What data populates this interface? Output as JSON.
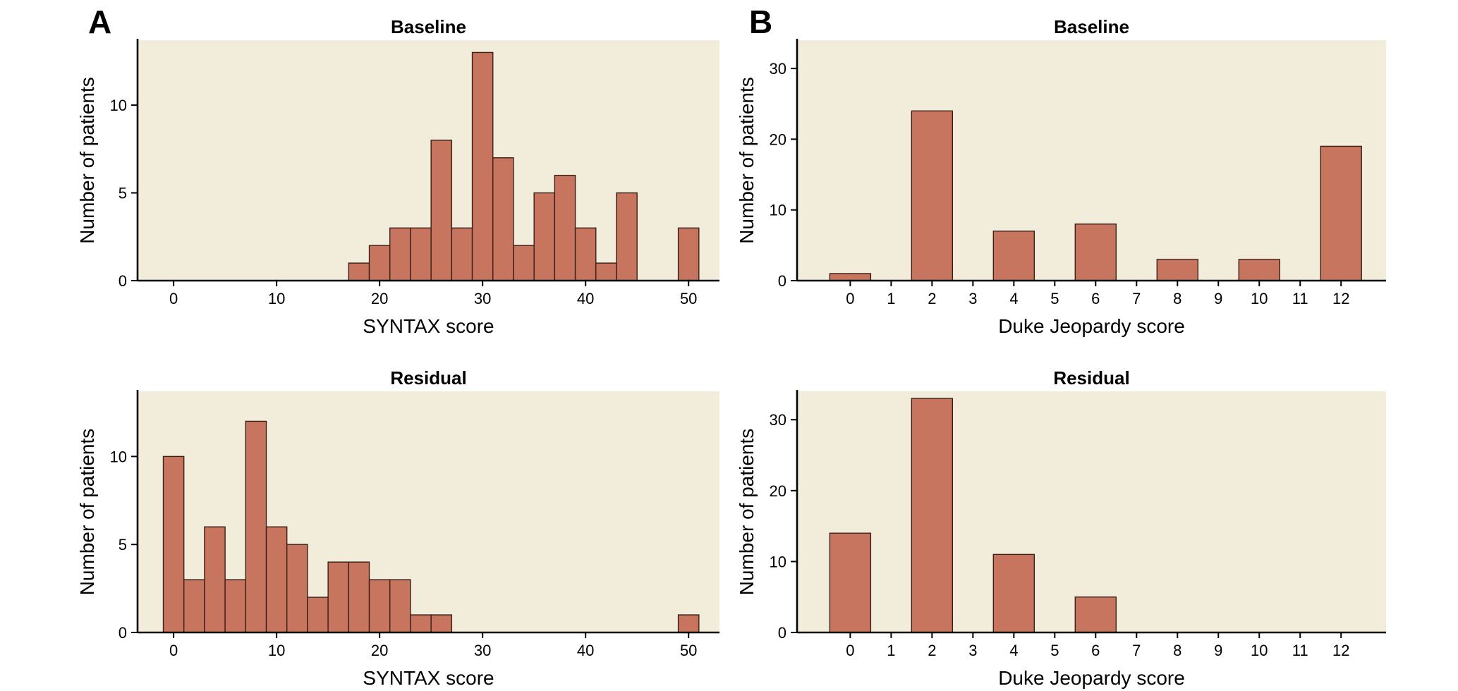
{
  "panels": [
    {
      "label": "A"
    },
    {
      "label": "B"
    }
  ],
  "chart_data": [
    {
      "type": "bar",
      "title": "Baseline",
      "xlabel": "SYNTAX score",
      "ylabel": "Number of patients",
      "xlim": [
        -3.5,
        53
      ],
      "ylim": [
        0,
        13.7
      ],
      "xticks": [
        0,
        10,
        20,
        30,
        40,
        50
      ],
      "yticks": [
        0,
        5,
        10
      ],
      "bin_width": 2,
      "bins": [
        {
          "x": 18,
          "value": 1
        },
        {
          "x": 20,
          "value": 2
        },
        {
          "x": 22,
          "value": 3
        },
        {
          "x": 24,
          "value": 3
        },
        {
          "x": 26,
          "value": 8
        },
        {
          "x": 28,
          "value": 3
        },
        {
          "x": 30,
          "value": 13
        },
        {
          "x": 32,
          "value": 7
        },
        {
          "x": 34,
          "value": 2
        },
        {
          "x": 36,
          "value": 5
        },
        {
          "x": 38,
          "value": 6
        },
        {
          "x": 40,
          "value": 3
        },
        {
          "x": 42,
          "value": 1
        },
        {
          "x": 44,
          "value": 5
        },
        {
          "x": 50,
          "value": 3
        }
      ]
    },
    {
      "type": "bar",
      "title": "Baseline",
      "xlabel": "Duke Jeopardy score",
      "ylabel": "Number of patients",
      "xlim": [
        -1.3,
        13.1
      ],
      "ylim": [
        0,
        34
      ],
      "xticks": [
        0,
        1,
        2,
        3,
        4,
        5,
        6,
        7,
        8,
        9,
        10,
        11,
        12
      ],
      "yticks": [
        0,
        10,
        20,
        30
      ],
      "bin_width": 1,
      "bins": [
        {
          "x": 0,
          "value": 1
        },
        {
          "x": 2,
          "value": 24
        },
        {
          "x": 4,
          "value": 7
        },
        {
          "x": 6,
          "value": 8
        },
        {
          "x": 8,
          "value": 3
        },
        {
          "x": 10,
          "value": 3
        },
        {
          "x": 12,
          "value": 19
        }
      ]
    },
    {
      "type": "bar",
      "title": "Residual",
      "xlabel": "SYNTAX score",
      "ylabel": "Number of patients",
      "xlim": [
        -3.5,
        53
      ],
      "ylim": [
        0,
        13.7
      ],
      "xticks": [
        0,
        10,
        20,
        30,
        40,
        50
      ],
      "yticks": [
        0,
        5,
        10
      ],
      "bin_width": 2,
      "bins": [
        {
          "x": 0,
          "value": 10
        },
        {
          "x": 2,
          "value": 3
        },
        {
          "x": 4,
          "value": 6
        },
        {
          "x": 6,
          "value": 3
        },
        {
          "x": 8,
          "value": 12
        },
        {
          "x": 10,
          "value": 6
        },
        {
          "x": 12,
          "value": 5
        },
        {
          "x": 14,
          "value": 2
        },
        {
          "x": 16,
          "value": 4
        },
        {
          "x": 18,
          "value": 4
        },
        {
          "x": 20,
          "value": 3
        },
        {
          "x": 22,
          "value": 3
        },
        {
          "x": 24,
          "value": 1
        },
        {
          "x": 26,
          "value": 1
        },
        {
          "x": 50,
          "value": 1
        }
      ]
    },
    {
      "type": "bar",
      "title": "Residual",
      "xlabel": "Duke Jeopardy score",
      "ylabel": "Number of patients",
      "xlim": [
        -1.3,
        13.1
      ],
      "ylim": [
        0,
        34
      ],
      "xticks": [
        0,
        1,
        2,
        3,
        4,
        5,
        6,
        7,
        8,
        9,
        10,
        11,
        12
      ],
      "yticks": [
        0,
        10,
        20,
        30
      ],
      "bin_width": 1,
      "bins": [
        {
          "x": 0,
          "value": 14
        },
        {
          "x": 2,
          "value": 33
        },
        {
          "x": 4,
          "value": 11
        },
        {
          "x": 6,
          "value": 5
        }
      ]
    }
  ]
}
